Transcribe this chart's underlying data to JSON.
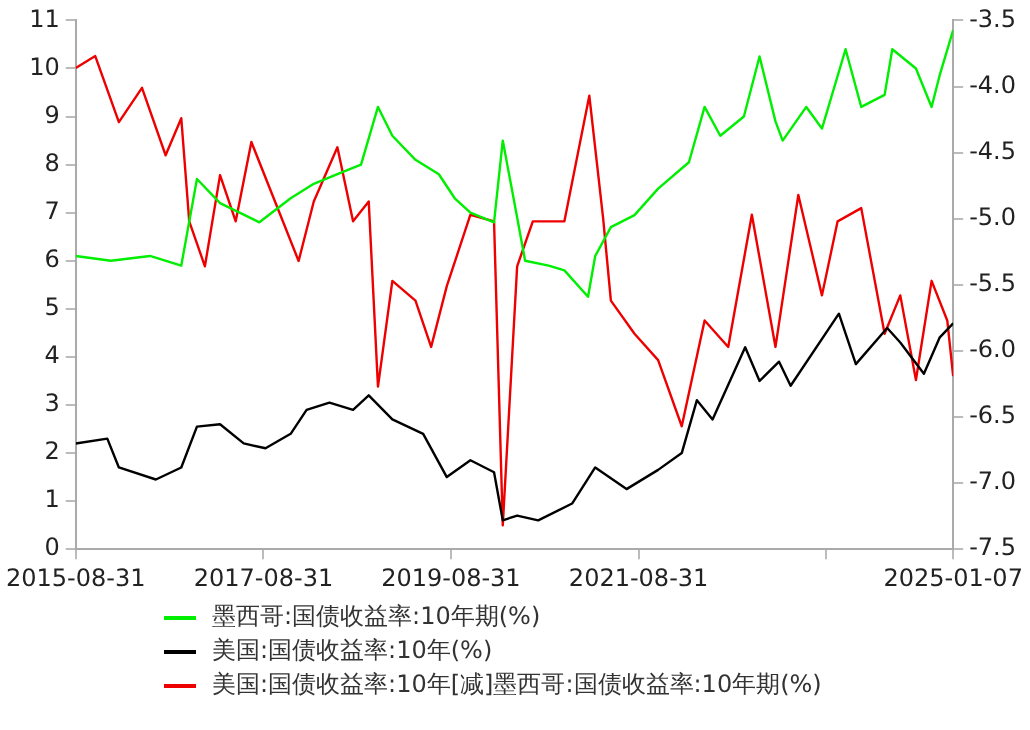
{
  "chart_data": {
    "type": "line",
    "legend": "bottom",
    "grid": false,
    "marker": "none",
    "line_style": "solid",
    "xlim": [
      "2015-08-31",
      "2025-01-07"
    ],
    "xticks": [
      "2015-08-31",
      "2017-08-31",
      "2019-08-31",
      "2021-08-31",
      {
        "value": "2023-08-31",
        "label": null
      },
      "2025-01-07"
    ],
    "ylim": [
      0,
      11
    ],
    "yticks": [
      0,
      1,
      2,
      3,
      4,
      5,
      6,
      7,
      8,
      9,
      10,
      11
    ],
    "y2lim": [
      -7.5,
      -3.5
    ],
    "y2ticks": [
      -7.5,
      {
        "value": -7,
        "label": "-7.0"
      },
      -6.5,
      {
        "value": -6,
        "label": "-6.0"
      },
      -5.5,
      {
        "value": -5,
        "label": "-5.0"
      },
      -4.5,
      {
        "value": -4,
        "label": "-4.0"
      },
      -3.5
    ],
    "series": [
      {
        "name": "墨西哥:国债收益率:10年期(%)",
        "color": "#00ee00",
        "x": [
          "2015-08-31",
          "2016-01-15",
          "2016-06-15",
          "2016-10-15",
          "2016-12-15",
          "2017-03-15",
          "2017-08-15",
          "2017-12-15",
          "2018-03-15",
          "2018-06-15",
          "2018-09-15",
          "2018-11-20",
          "2019-01-15",
          "2019-04-15",
          "2019-07-15",
          "2019-09-15",
          "2019-11-15",
          "2020-02-15",
          "2020-03-20",
          "2020-05-15",
          "2020-06-15",
          "2020-09-15",
          "2020-11-15",
          "2021-02-15",
          "2021-03-15",
          "2021-05-15",
          "2021-08-15",
          "2021-11-15",
          "2022-03-15",
          "2022-05-15",
          "2022-07-15",
          "2022-10-15",
          "2022-12-15",
          "2023-02-15",
          "2023-03-15",
          "2023-06-15",
          "2023-08-15",
          "2023-11-15",
          "2024-01-15",
          "2024-04-15",
          "2024-05-15",
          "2024-08-15",
          "2024-10-15",
          "2024-11-15",
          "2025-01-07"
        ],
        "values": [
          6.1,
          6.0,
          6.1,
          5.9,
          7.7,
          7.2,
          6.8,
          7.3,
          7.6,
          7.8,
          8.0,
          9.2,
          8.6,
          8.1,
          7.8,
          7.3,
          7.0,
          6.8,
          8.5,
          6.9,
          6.0,
          5.9,
          5.8,
          5.25,
          6.1,
          6.7,
          6.95,
          7.5,
          8.05,
          9.2,
          8.6,
          9.0,
          10.25,
          8.9,
          8.5,
          9.2,
          8.75,
          10.4,
          9.2,
          9.45,
          10.4,
          10.0,
          9.2,
          9.85,
          10.8
        ]
      },
      {
        "name": "美国:国债收益率:10年(%)",
        "color": "#000000",
        "x": [
          "2015-08-31",
          "2016-01-01",
          "2016-02-15",
          "2016-07-08",
          "2016-10-15",
          "2016-12-15",
          "2017-03-15",
          "2017-06-15",
          "2017-09-08",
          "2017-12-15",
          "2018-02-15",
          "2018-05-15",
          "2018-08-15",
          "2018-10-15",
          "2019-01-15",
          "2019-05-15",
          "2019-08-15",
          "2019-11-15",
          "2020-02-15",
          "2020-03-20",
          "2020-05-15",
          "2020-08-05",
          "2020-12-15",
          "2021-03-15",
          "2021-07-15",
          "2021-11-15",
          "2022-02-15",
          "2022-04-15",
          "2022-06-15",
          "2022-10-20",
          "2022-12-15",
          "2023-03-01",
          "2023-04-15",
          "2023-10-20",
          "2023-12-25",
          "2024-04-25",
          "2024-06-15",
          "2024-09-15",
          "2024-11-15",
          "2025-01-07"
        ],
        "values": [
          2.2,
          2.3,
          1.7,
          1.45,
          1.7,
          2.55,
          2.6,
          2.2,
          2.1,
          2.4,
          2.9,
          3.05,
          2.9,
          3.2,
          2.7,
          2.4,
          1.5,
          1.85,
          1.6,
          0.6,
          0.7,
          0.6,
          0.95,
          1.7,
          1.25,
          1.65,
          2.0,
          3.1,
          2.7,
          4.2,
          3.5,
          3.9,
          3.4,
          4.9,
          3.85,
          4.6,
          4.3,
          3.65,
          4.4,
          4.7
        ]
      },
      {
        "name": "美国:国债收益率:10年[减]墨西哥:国债收益率:10年期(%)",
        "color": "#ee0000",
        "axis": "y2",
        "x": [
          "2015-08-31",
          "2015-11-15",
          "2016-02-15",
          "2016-05-15",
          "2016-08-15",
          "2016-10-15",
          "2016-11-15",
          "2017-01-15",
          "2017-03-15",
          "2017-05-15",
          "2017-07-15",
          "2017-10-15",
          "2018-01-15",
          "2018-03-15",
          "2018-06-15",
          "2018-08-15",
          "2018-10-15",
          "2018-11-20",
          "2019-01-15",
          "2019-04-15",
          "2019-06-15",
          "2019-08-15",
          "2019-11-15",
          "2020-02-15",
          "2020-03-20",
          "2020-05-15",
          "2020-07-15",
          "2020-11-15",
          "2021-02-20",
          "2021-04-15",
          "2021-05-15",
          "2021-08-15",
          "2021-11-15",
          "2022-02-15",
          "2022-05-15",
          "2022-08-15",
          "2022-11-15",
          "2023-02-15",
          "2023-05-15",
          "2023-08-15",
          "2023-10-15",
          "2024-01-15",
          "2024-04-15",
          "2024-06-15",
          "2024-08-15",
          "2024-10-15",
          "2024-12-15",
          "2025-01-07"
        ],
        "values": [
          -3.86,
          -3.77,
          -4.27,
          -4.01,
          -4.52,
          -4.24,
          -5.02,
          -5.36,
          -4.67,
          -5.02,
          -4.42,
          -4.87,
          -5.32,
          -4.87,
          -4.46,
          -5.02,
          -4.87,
          -6.27,
          -5.47,
          -5.62,
          -5.97,
          -5.51,
          -4.97,
          -5.02,
          -7.32,
          -5.36,
          -5.02,
          -5.02,
          -4.07,
          -5.0,
          -5.62,
          -5.87,
          -6.07,
          -6.57,
          -5.77,
          -5.97,
          -4.97,
          -5.97,
          -4.82,
          -5.58,
          -5.02,
          -4.92,
          -5.87,
          -5.58,
          -6.22,
          -5.47,
          -5.77,
          -6.19
        ]
      }
    ]
  }
}
